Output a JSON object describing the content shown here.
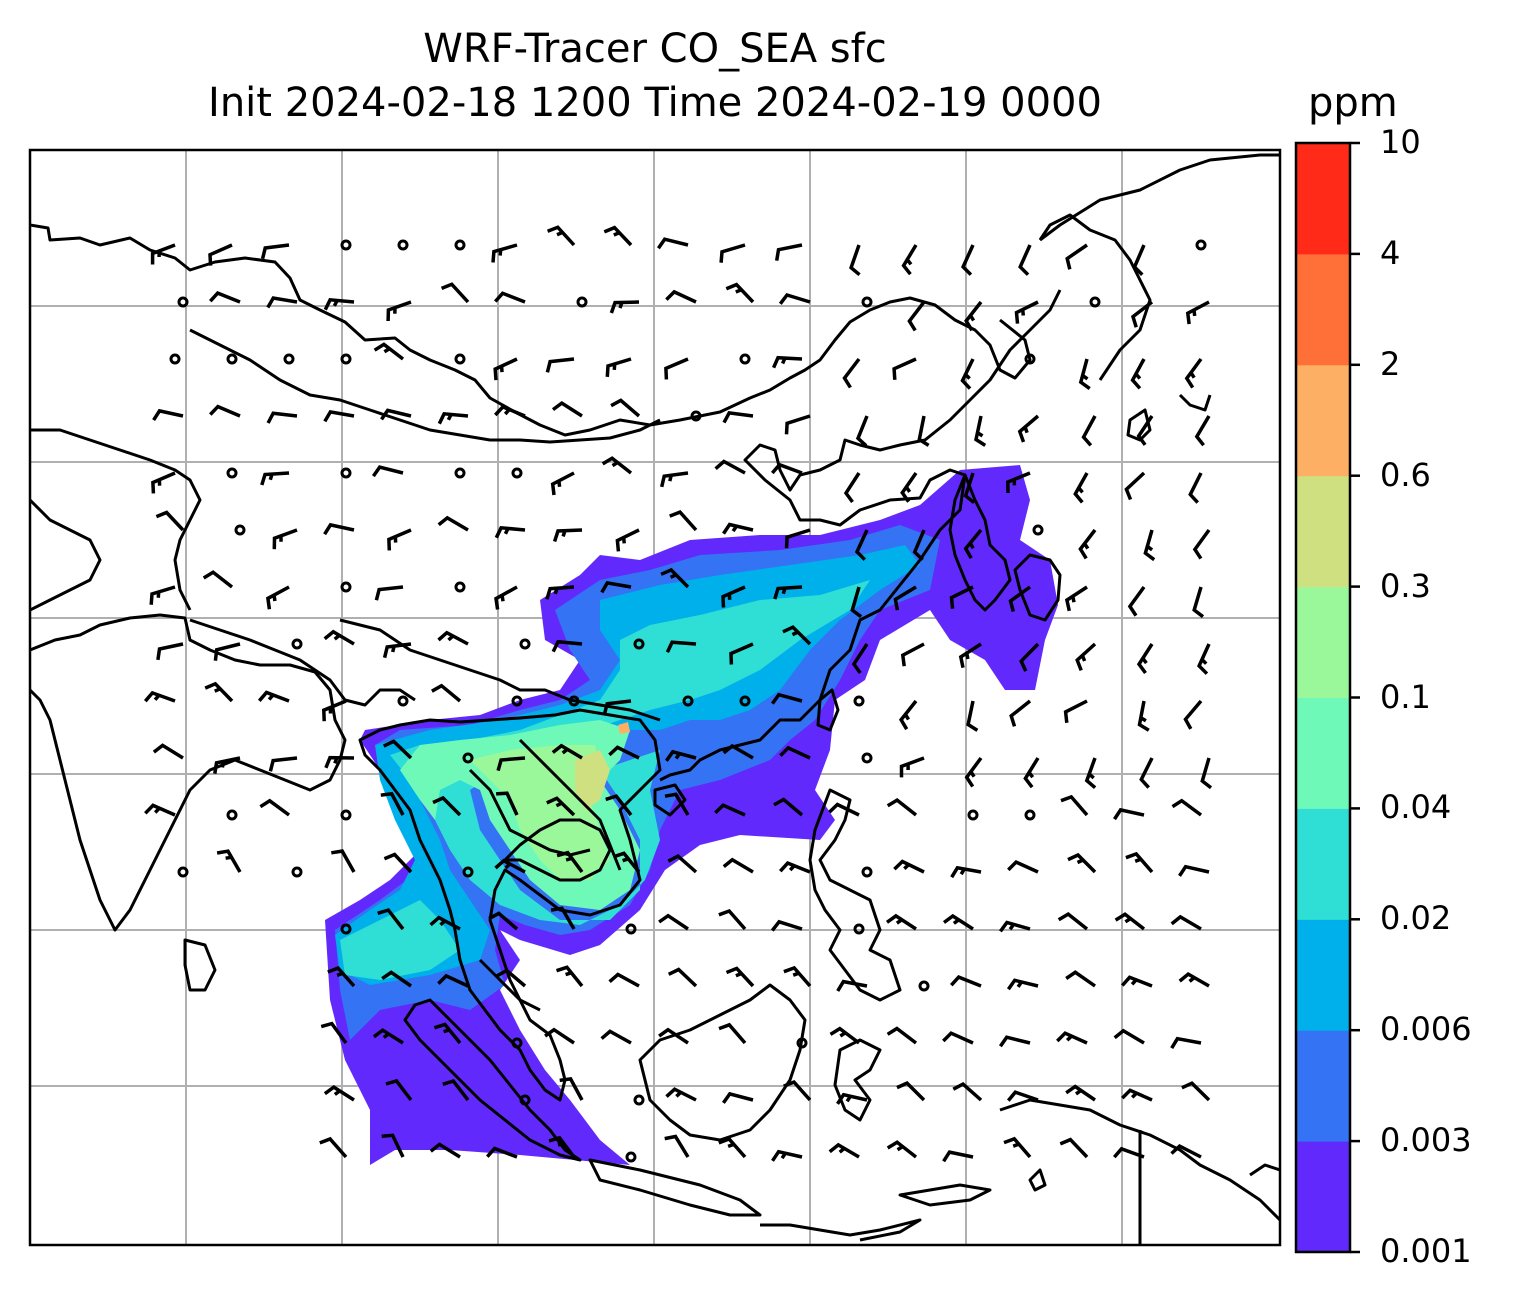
{
  "title": {
    "line1": "WRF-Tracer CO_SEA sfc",
    "line2": "Init 2024-02-18 1200 Time 2024-02-19 0000"
  },
  "colorbar": {
    "unit": "ppm",
    "levels": [
      "0.001",
      "0.003",
      "0.006",
      "0.02",
      "0.04",
      "0.1",
      "0.3",
      "0.6",
      "2",
      "4",
      "10"
    ],
    "colors": [
      "#6229fc",
      "#3473f4",
      "#00b0ea",
      "#2fdfd5",
      "#6ff9b9",
      "#9bf89a",
      "#cfe080",
      "#fdb064",
      "#ff7039",
      "#ff2a18"
    ]
  },
  "map": {
    "gridlines": "on",
    "coastlines": "on",
    "wind_barbs": "on"
  }
}
